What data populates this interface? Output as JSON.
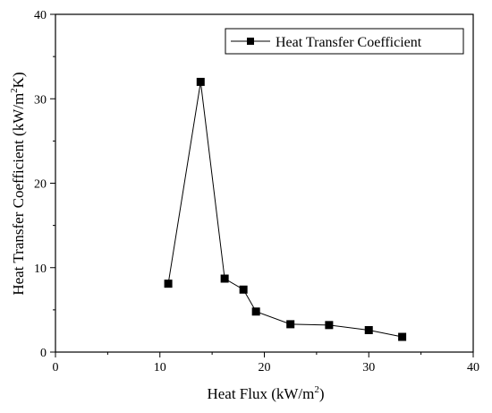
{
  "chart_data": {
    "type": "line",
    "title": "",
    "xlabel": "Heat Flux (kW/m",
    "xlabel_sup": "2",
    "xlabel_end": ")",
    "ylabel": "Heat Transfer Coefficient (kW/m",
    "ylabel_sup": "2",
    "ylabel_end": "K)",
    "xlim": [
      0,
      40
    ],
    "ylim": [
      0,
      40
    ],
    "xticks": [
      0,
      10,
      20,
      30,
      40
    ],
    "yticks": [
      0,
      10,
      20,
      30,
      40
    ],
    "grid": false,
    "legend_position": "top-right",
    "series": [
      {
        "name": "Heat Transfer Coefficient",
        "marker": "square",
        "color": "#000000",
        "points": [
          {
            "x": 10.8,
            "y": 8.1
          },
          {
            "x": 13.9,
            "y": 32.0
          },
          {
            "x": 16.2,
            "y": 8.7
          },
          {
            "x": 18.0,
            "y": 7.4
          },
          {
            "x": 19.2,
            "y": 4.8
          },
          {
            "x": 22.5,
            "y": 3.3
          },
          {
            "x": 26.2,
            "y": 3.2
          },
          {
            "x": 30.0,
            "y": 2.6
          },
          {
            "x": 33.2,
            "y": 1.8
          }
        ]
      }
    ]
  }
}
